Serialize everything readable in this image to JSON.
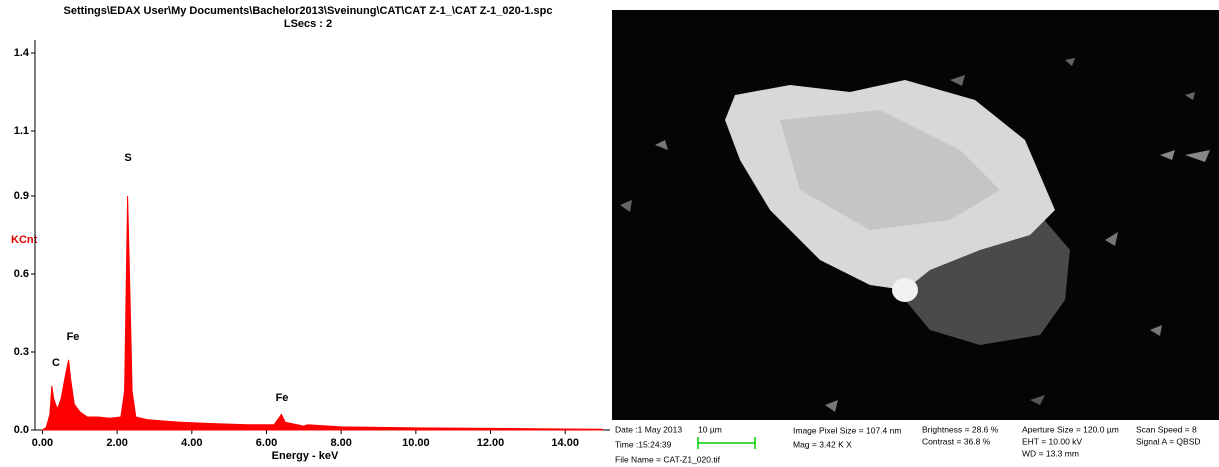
{
  "chart_data": {
    "type": "area",
    "title": "Settings\\EDAX User\\My Documents\\Bachelor2013\\Sveinung\\CAT\\CAT Z-1_\\CAT  Z-1_020-1.spc",
    "subtitle": "LSecs : 2",
    "x_label": "Energy - keV",
    "y_label": "KCnt",
    "color": "#ff0000",
    "x": [
      0.0,
      0.1,
      0.2,
      0.25,
      0.3,
      0.4,
      0.5,
      0.6,
      0.7,
      0.75,
      0.85,
      1.0,
      1.2,
      1.5,
      1.8,
      2.1,
      2.2,
      2.28,
      2.33,
      2.4,
      2.5,
      2.8,
      3.2,
      3.7,
      4.5,
      5.5,
      6.2,
      6.35,
      6.4,
      6.5,
      7.0,
      7.1,
      8.0,
      9.0,
      10.0,
      12.0,
      14.0,
      15.0
    ],
    "values": [
      0,
      0.01,
      0.06,
      0.17,
      0.12,
      0.08,
      0.12,
      0.2,
      0.27,
      0.2,
      0.1,
      0.07,
      0.05,
      0.05,
      0.045,
      0.05,
      0.15,
      0.9,
      0.6,
      0.15,
      0.05,
      0.04,
      0.035,
      0.03,
      0.025,
      0.02,
      0.02,
      0.05,
      0.06,
      0.03,
      0.015,
      0.02,
      0.012,
      0.01,
      0.008,
      0.006,
      0.004,
      0.003
    ],
    "annotations": [
      "C",
      "Fe",
      "S",
      "Fe"
    ],
    "xlim": [
      -0.2,
      15.2
    ],
    "ylim": [
      0,
      1.5
    ],
    "xticks": [
      {
        "value": 0,
        "label": "0.00"
      },
      {
        "value": 2,
        "label": "2.00"
      },
      {
        "value": 4,
        "label": "4.00"
      },
      {
        "value": 6,
        "label": "6.00"
      },
      {
        "value": 8,
        "label": "8.00"
      },
      {
        "value": 10,
        "label": "10.00"
      },
      {
        "value": 12,
        "label": "12.00"
      },
      {
        "value": 14,
        "label": "14.00"
      }
    ],
    "yticks": [
      {
        "value": 0,
        "label": "0.0"
      },
      0.3,
      0.6,
      0.9,
      {
        "value": 1.15,
        "label": "1.1"
      },
      {
        "value": 1.45,
        "label": "1.4"
      }
    ]
  },
  "sem_panel": {
    "date": "Date :1 May 2013",
    "time": "Time :15:24:39",
    "file": "File Name = CAT-Z1_020.tif",
    "scale_bar": "10 µm",
    "pixel_size": "Image Pixel Size = 107.4 nm",
    "mag": "Mag =  3.42 K X",
    "brightness": "Brightness =  28.6 %",
    "contrast": "Contrast =  36.8 %",
    "aperture": "Aperture Size = 120.0 µm",
    "eht": "EHT = 10.00 kV",
    "wd": "WD = 13.3 mm",
    "scan_speed": "Scan Speed = 8",
    "signal": "Signal A = QBSD"
  }
}
